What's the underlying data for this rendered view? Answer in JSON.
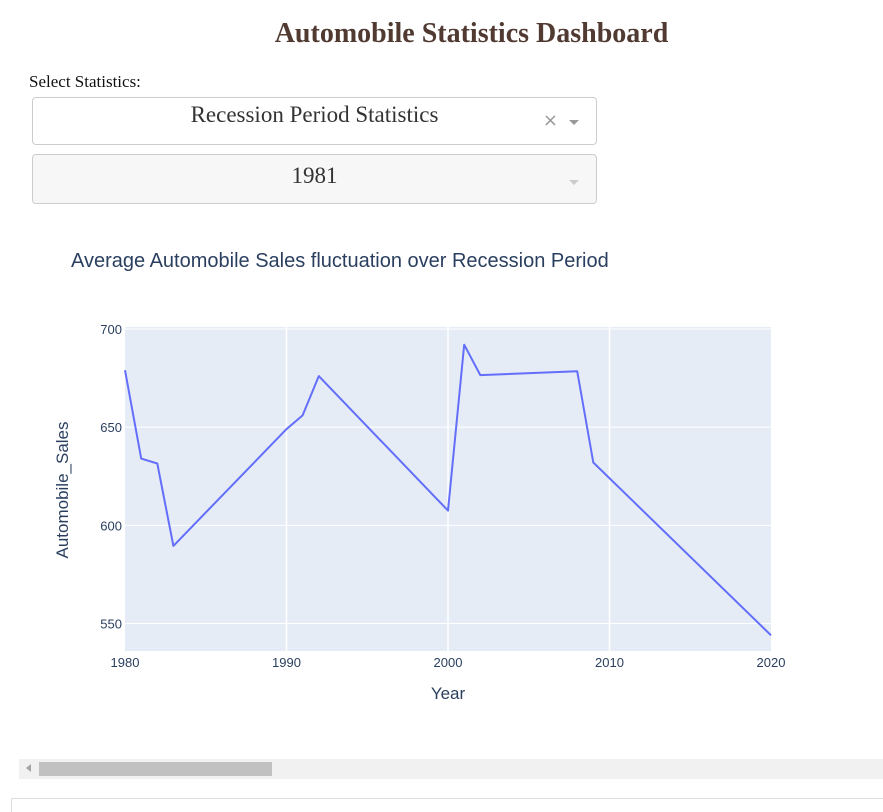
{
  "page": {
    "title": "Automobile Statistics Dashboard",
    "select_label": "Select Statistics:"
  },
  "dropdowns": {
    "statistics": {
      "value": "Recession Period Statistics",
      "clear_icon": "×"
    },
    "year": {
      "value": "1981"
    }
  },
  "colors": {
    "title": "#503a32",
    "plot_bg": "#e5ecf6",
    "line": "#636efa",
    "text": "#2a3f5f"
  },
  "chart_data": {
    "type": "line",
    "title": "Average Automobile Sales fluctuation over Recession Period",
    "xlabel": "Year",
    "ylabel": "Automobile_Sales",
    "xlim": [
      1980,
      2020
    ],
    "ylim": [
      536,
      701
    ],
    "xticks": [
      1980,
      1990,
      2000,
      2010,
      2020
    ],
    "yticks": [
      550,
      600,
      650,
      700
    ],
    "grid": true,
    "x": [
      1980,
      1981,
      1982,
      1983,
      1990,
      1991,
      1992,
      2000,
      2001,
      2002,
      2008,
      2009,
      2020
    ],
    "values": [
      679,
      634,
      631.5,
      589.5,
      649,
      656,
      676,
      607.5,
      692,
      676.5,
      678.5,
      632,
      544
    ]
  }
}
